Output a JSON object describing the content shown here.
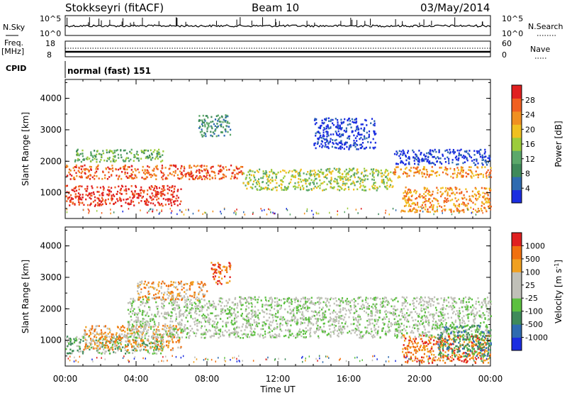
{
  "header": {
    "station": "Stokkseyri (fitACF)",
    "beam": "Beam 10",
    "date": "03/May/2014"
  },
  "panels": {
    "nsky": {
      "label": "N.Sky",
      "tick_top": "10^5",
      "tick_bottom": "10^0",
      "right_label": "N.Search",
      "right_tick_top": "10^5",
      "right_tick_bottom": "10^0"
    },
    "freq": {
      "label_line1": "Freq.",
      "label_line2": "[MHz]",
      "tick_top": "18",
      "tick_bottom": "8",
      "right_label": "Nave",
      "right_tick_top": "60",
      "right_tick_bottom": "0"
    },
    "cpid": {
      "label": "CPID",
      "text": "normal (fast) 151"
    }
  },
  "chart_data": [
    {
      "type": "heatmap",
      "name": "power",
      "ylabel": "Slant Range [km]",
      "yticks": [
        1000,
        2000,
        3000,
        4000
      ],
      "ylim": [
        180,
        4600
      ],
      "xlabel": "Time UT",
      "xticks": [
        "00:00",
        "04:00",
        "08:00",
        "12:00",
        "16:00",
        "20:00",
        "00:00"
      ],
      "xlim_hours": [
        0,
        24
      ],
      "colorbar": {
        "label": "Power [dB]",
        "ticks": [
          "4",
          "8",
          "12",
          "16",
          "20",
          "24",
          "28"
        ],
        "colors": [
          "#1b2de0",
          "#2f6bb0",
          "#3f8a5a",
          "#5ca86a",
          "#9ccc3c",
          "#f0c020",
          "#f09020",
          "#f06020",
          "#e02020"
        ]
      },
      "bands": [
        {
          "t0": 0.0,
          "t1": 6.5,
          "r0": 600,
          "r1": 1250,
          "level": 8
        },
        {
          "t0": 0.0,
          "t1": 10.0,
          "r0": 1450,
          "r1": 1900,
          "level": 7
        },
        {
          "t0": 10.0,
          "t1": 18.5,
          "r0": 1100,
          "r1": 1800,
          "level": 4
        },
        {
          "t0": 18.5,
          "t1": 24.0,
          "r0": 1500,
          "r1": 1850,
          "level": 6
        },
        {
          "t0": 0.5,
          "t1": 5.5,
          "r0": 2000,
          "r1": 2400,
          "level": 3
        },
        {
          "t0": 7.5,
          "t1": 9.3,
          "r0": 2800,
          "r1": 3500,
          "level": 2
        },
        {
          "t0": 19.0,
          "t1": 24.0,
          "r0": 400,
          "r1": 1200,
          "level": 6
        },
        {
          "t0": 18.5,
          "t1": 24.0,
          "r0": 1900,
          "r1": 2400,
          "level": 0
        },
        {
          "t0": 14.0,
          "t1": 17.5,
          "r0": 2400,
          "r1": 3400,
          "level": 0
        }
      ]
    },
    {
      "type": "heatmap",
      "name": "velocity",
      "ylabel": "Slant Range [km]",
      "yticks": [
        1000,
        2000,
        3000,
        4000
      ],
      "ylim": [
        180,
        4600
      ],
      "xlabel": "Time UT",
      "xticks": [
        "00:00",
        "04:00",
        "08:00",
        "12:00",
        "16:00",
        "20:00",
        "00:00"
      ],
      "xlim_hours": [
        0,
        24
      ],
      "colorbar": {
        "label": "Velocity [m s",
        "label_sup": "-1",
        "label_end": "]",
        "ticks": [
          "1000",
          "500",
          "100",
          "25",
          "-25",
          "-100",
          "-500",
          "-1000"
        ],
        "colors": [
          "#1b2de0",
          "#2f6bb0",
          "#3f8a5a",
          "#5cc040",
          "#c0c0b8",
          "#c0c0b8",
          "#f0a020",
          "#f07010",
          "#e02020"
        ]
      },
      "bands": [
        {
          "t0": 0.0,
          "t1": 5.5,
          "r0": 600,
          "r1": 1150,
          "level": 3
        },
        {
          "t0": 1.0,
          "t1": 6.5,
          "r0": 700,
          "r1": 1500,
          "level": 6
        },
        {
          "t0": 3.5,
          "t1": 24.0,
          "r0": 1100,
          "r1": 2400,
          "level": 4
        },
        {
          "t0": 8.2,
          "t1": 9.3,
          "r0": 2800,
          "r1": 3500,
          "level": 7
        },
        {
          "t0": 4.0,
          "t1": 8.0,
          "r0": 2300,
          "r1": 2900,
          "level": 6
        },
        {
          "t0": 19.0,
          "t1": 24.0,
          "r0": 300,
          "r1": 1200,
          "level": 7
        },
        {
          "t0": 21.0,
          "t1": 24.0,
          "r0": 500,
          "r1": 1500,
          "level": 2
        }
      ]
    }
  ]
}
